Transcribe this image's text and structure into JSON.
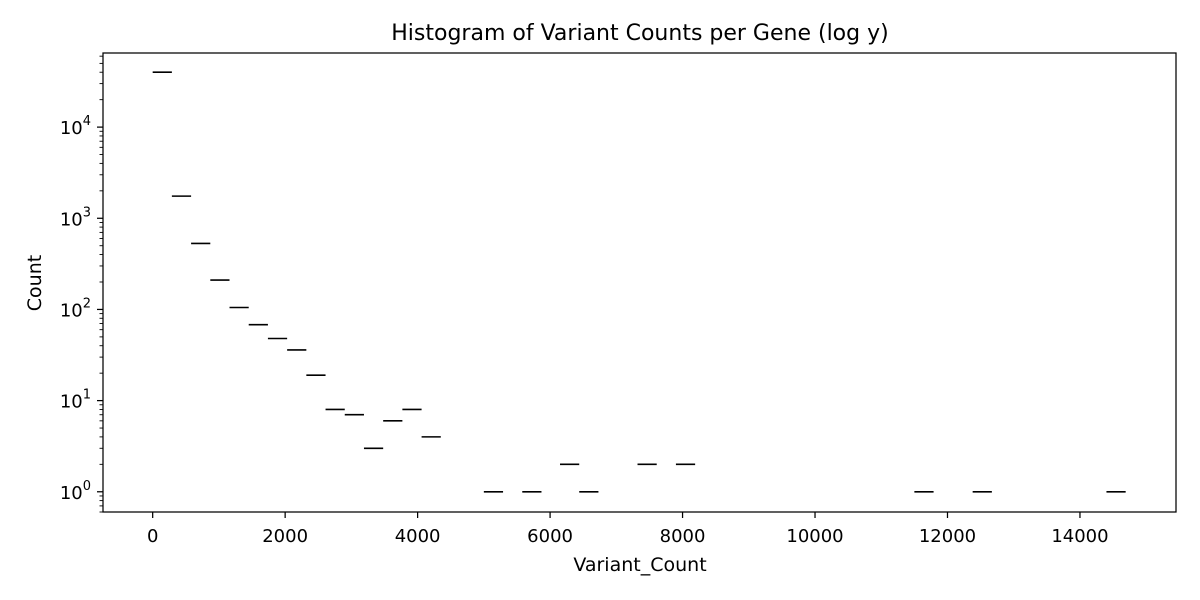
{
  "chart_data": {
    "type": "bar",
    "title": "Histogram of Variant Counts per Gene (log y)",
    "xlabel": "Variant_Count",
    "ylabel": "Count",
    "y_scale": "log",
    "xlim": [
      -750,
      15450
    ],
    "ylim": [
      0.6,
      65000
    ],
    "x_ticks": [
      0,
      2000,
      4000,
      6000,
      8000,
      10000,
      12000,
      14000
    ],
    "x_tick_labels": [
      "0",
      "2000",
      "4000",
      "6000",
      "8000",
      "10000",
      "12000",
      "14000"
    ],
    "y_ticks": [
      {
        "value": 1,
        "base": "10",
        "exp": "0"
      },
      {
        "value": 10,
        "base": "10",
        "exp": "1"
      },
      {
        "value": 100,
        "base": "10",
        "exp": "2"
      },
      {
        "value": 1000,
        "base": "10",
        "exp": "3"
      },
      {
        "value": 10000,
        "base": "10",
        "exp": "4"
      }
    ],
    "grid": false,
    "bins": [
      {
        "x0": 0,
        "x1": 290,
        "count": 40000
      },
      {
        "x0": 290,
        "x1": 580,
        "count": 1750
      },
      {
        "x0": 580,
        "x1": 870,
        "count": 530
      },
      {
        "x0": 870,
        "x1": 1160,
        "count": 210
      },
      {
        "x0": 1160,
        "x1": 1450,
        "count": 105
      },
      {
        "x0": 1450,
        "x1": 1740,
        "count": 68
      },
      {
        "x0": 1740,
        "x1": 2030,
        "count": 48
      },
      {
        "x0": 2030,
        "x1": 2320,
        "count": 36
      },
      {
        "x0": 2320,
        "x1": 2610,
        "count": 19
      },
      {
        "x0": 2610,
        "x1": 2900,
        "count": 8
      },
      {
        "x0": 2900,
        "x1": 3190,
        "count": 7
      },
      {
        "x0": 3190,
        "x1": 3480,
        "count": 3
      },
      {
        "x0": 3480,
        "x1": 3770,
        "count": 6
      },
      {
        "x0": 3770,
        "x1": 4060,
        "count": 8
      },
      {
        "x0": 4060,
        "x1": 4350,
        "count": 4
      },
      {
        "x0": 5000,
        "x1": 5290,
        "count": 1
      },
      {
        "x0": 5580,
        "x1": 5870,
        "count": 1
      },
      {
        "x0": 6150,
        "x1": 6440,
        "count": 2
      },
      {
        "x0": 6440,
        "x1": 6730,
        "count": 1
      },
      {
        "x0": 7320,
        "x1": 7610,
        "count": 2
      },
      {
        "x0": 7900,
        "x1": 8190,
        "count": 2
      },
      {
        "x0": 11500,
        "x1": 11790,
        "count": 1
      },
      {
        "x0": 12380,
        "x1": 12670,
        "count": 1
      },
      {
        "x0": 14400,
        "x1": 14690,
        "count": 1
      }
    ],
    "bar_color": "#000000"
  }
}
